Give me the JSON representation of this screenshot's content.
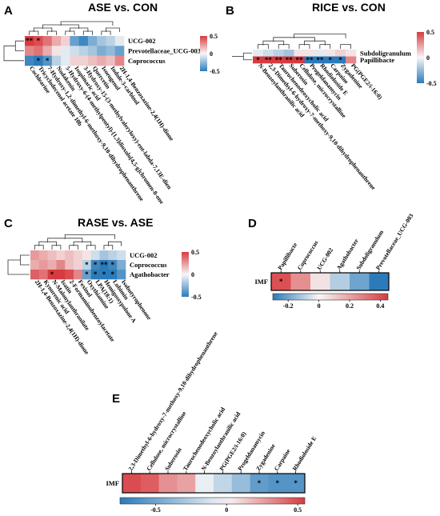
{
  "chart_data": [
    {
      "panel": "A",
      "type": "heatmap",
      "title": "ASE vs. CON",
      "rows": [
        "UCG-002",
        "Prevotellaceae_UCG-003",
        "Coprococcus"
      ],
      "columns": [
        "Cochlearine",
        "Tricyclodecenol acetate 10b",
        "7-Hydroxy-1,2-dimethyl-6-methoxy-9,10-dihydrophenanthrene",
        "Nodakenin",
        "5-Hydroxy-6-(4-methylpentyl)-[1,3]dioxolo[4,5-g]chromen-8-one",
        "Isopimaric acid",
        "3-Hydroxy-15-(3-methylvaleryloxy)-ent-labda-7,13E-dien",
        "Quercetin",
        "Isoeugenol",
        "Indole-3-carbinol",
        "2H-1,4-Benzoxazine-2,4(1H)-dione"
      ],
      "values": [
        [
          0.6,
          0.45,
          0.35,
          0.2,
          0.1,
          -0.35,
          -0.45,
          -0.3,
          -0.2,
          -0.15,
          -0.05
        ],
        [
          0.3,
          0.35,
          0.2,
          0.05,
          -0.05,
          -0.1,
          -0.15,
          -0.2,
          -0.3,
          -0.25,
          -0.35
        ],
        [
          -0.45,
          -0.55,
          -0.4,
          -0.15,
          -0.05,
          0.1,
          0.1,
          0.15,
          0.2,
          0.15,
          0.3
        ]
      ],
      "significance": [
        [
          "**",
          "*",
          "",
          "",
          "",
          "",
          "",
          "",
          "",
          "",
          ""
        ],
        [
          "",
          "",
          "",
          "",
          "",
          "",
          "",
          "",
          "",
          "",
          ""
        ],
        [
          "",
          "*",
          "*",
          "",
          "",
          "",
          "",
          "",
          "",
          "",
          ""
        ]
      ],
      "colorbar": {
        "range": [
          -0.5,
          0.5
        ],
        "ticks": [
          "0.5",
          "0",
          "-0.5"
        ]
      }
    },
    {
      "panel": "B",
      "type": "heatmap",
      "title": "RICE vs. CON",
      "rows": [
        "Subdoligranulum",
        "Papillibacte"
      ],
      "columns": [
        "N-Benzoylanthranilic acid",
        "2,3-Dimethyl-6-hydroxy-7-methoxy-9,10-dihydrophenanthrene",
        "Taurochenodeoxycholic acid",
        "Suberosin",
        "Cellulose, microcrystalline",
        "Progeldanamycin",
        "Rhodioloside E",
        "Carpaine",
        "Zygadenine",
        "PG(PGE2/i-16:0)"
      ],
      "values": [
        [
          -0.05,
          -0.1,
          -0.15,
          -0.2,
          0.05,
          0.05,
          -0.05,
          0.05,
          0.1,
          0.05
        ],
        [
          0.55,
          0.6,
          0.55,
          0.5,
          0.6,
          -0.6,
          -0.55,
          -0.6,
          -0.55,
          0.3
        ]
      ],
      "significance": [
        [
          "",
          "",
          "",
          "",
          "",
          "",
          "",
          "",
          "",
          ""
        ],
        [
          "*",
          "**",
          "**",
          "**",
          "**",
          "**",
          "**",
          "*",
          "*",
          ""
        ]
      ],
      "colorbar": {
        "range": [
          -0.5,
          0.5
        ],
        "ticks": [
          "0.5",
          "0",
          "-0.5"
        ]
      }
    },
    {
      "panel": "C",
      "type": "heatmap",
      "title": "RASE vs. ASE",
      "rows": [
        "UCG-002",
        "Coprococcus",
        "Agathobacter"
      ],
      "columns": [
        "2H-1,4-Benzoxazine-2,4(1H)-dione",
        "Kynurenic acid",
        "N-Malonylanthranilate",
        "Isatin",
        "2-Formaminobenzoylacetate",
        "Fexinol",
        "Oxythiamine",
        "LPA(18:1)",
        "Hemigossypolone A",
        "Lubimin",
        "Isobutyrophenone"
      ],
      "values": [
        [
          0.25,
          0.2,
          0.15,
          0.1,
          0.15,
          0.1,
          0.05,
          -0.1,
          -0.2,
          -0.15,
          -0.1
        ],
        [
          0.2,
          0.25,
          0.2,
          0.3,
          0.15,
          0.1,
          -0.15,
          -0.45,
          -0.5,
          -0.45,
          -0.3
        ],
        [
          0.4,
          0.35,
          0.55,
          0.5,
          0.45,
          0.3,
          -0.35,
          -0.55,
          -0.6,
          -0.55,
          -0.4
        ]
      ],
      "significance": [
        [
          "",
          "",
          "",
          "",
          "",
          "",
          "",
          "",
          "",
          "",
          ""
        ],
        [
          "",
          "",
          "",
          "",
          "",
          "",
          "*",
          "*",
          "**",
          "*",
          ""
        ],
        [
          "",
          "",
          "*",
          "",
          "",
          "",
          "*",
          "*",
          "*",
          "*",
          ""
        ]
      ],
      "colorbar": {
        "range": [
          -0.5,
          0.5
        ],
        "ticks": [
          "0.5",
          "0",
          "-0.5"
        ]
      }
    },
    {
      "panel": "D",
      "type": "heatmap",
      "rows": [
        "IMF"
      ],
      "columns": [
        "Papillibacte",
        "Coprococcus",
        "UCG-002",
        "Agathobacter",
        "Subdoligranulum",
        "Prevotellaceae_UCG-003"
      ],
      "values": [
        [
          0.4,
          0.25,
          0.05,
          -0.1,
          -0.2,
          -0.3
        ]
      ],
      "significance": [
        [
          "*",
          "",
          "",
          "",
          "",
          ""
        ]
      ],
      "colorbar": {
        "range": [
          -0.3,
          0.45
        ],
        "ticks": [
          "-0.2",
          "0",
          "0.2",
          "0.4"
        ]
      }
    },
    {
      "panel": "E",
      "type": "heatmap",
      "rows": [
        "IMF"
      ],
      "columns": [
        "2,3-Dimethyl-6-hydroxy-7-methoxy-9,10-dihydrophenanthrene",
        "Cellulose, microcrystalline",
        "Suberosin",
        "Taurochenodeoxycholic acid",
        "N-Benzoylanthranilic acid",
        "PG(PGE2/i-16:0)",
        "Progeldanamycin",
        "Zygadenine",
        "Carpaine",
        "Rhodioloside E"
      ],
      "values": [
        [
          0.5,
          0.45,
          0.3,
          0.25,
          -0.05,
          -0.2,
          -0.35,
          -0.55,
          -0.6,
          -0.6
        ]
      ],
      "significance": [
        [
          "",
          "",
          "",
          "",
          "",
          "",
          "",
          "*",
          "*",
          "*"
        ]
      ],
      "colorbar": {
        "range": [
          -0.75,
          0.55
        ],
        "ticks": [
          "-0.5",
          "0",
          "0.5"
        ]
      }
    }
  ],
  "colors": {
    "positive": "#d73b3f",
    "neutral": "#f7f7f7",
    "negative": "#2b7bba",
    "text": "#000000"
  }
}
